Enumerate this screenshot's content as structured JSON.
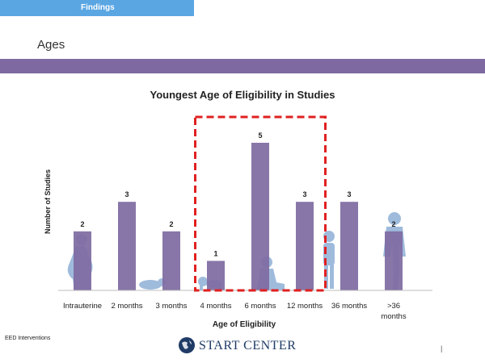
{
  "header": {
    "tab_label": "Findings",
    "section_title": "Ages"
  },
  "footer": {
    "left_text": "EED Interventions",
    "logo_text": "START CENTER",
    "page_marker": "|"
  },
  "colors": {
    "bar": "#7e6aa1",
    "highlight_box": "#e02020",
    "silhouette": "#8fb0d6",
    "tab": "#5aa6e3",
    "band": "#7e6aa1"
  },
  "chart_data": {
    "type": "bar",
    "title": "Youngest Age of Eligibility in Studies",
    "xlabel": "Age of Eligibility",
    "ylabel": "Number of Studies",
    "categories": [
      "Intrauterine",
      "2 months",
      "3 months",
      "4 months",
      "6 months",
      "12 months",
      "36 months",
      ">36 months"
    ],
    "values": [
      2,
      3,
      2,
      1,
      5,
      3,
      3,
      2
    ],
    "ylim": [
      0,
      5
    ],
    "grid": false,
    "highlight": [
      "4 months",
      "6 months",
      "12 months"
    ],
    "decorations": [
      "pregnant-woman-silhouette",
      "infant-lying-silhouette",
      "baby-crawling-silhouette",
      "sitting-child-silhouette",
      "toddler-standing-silhouette",
      "adult-standing-silhouette"
    ]
  }
}
